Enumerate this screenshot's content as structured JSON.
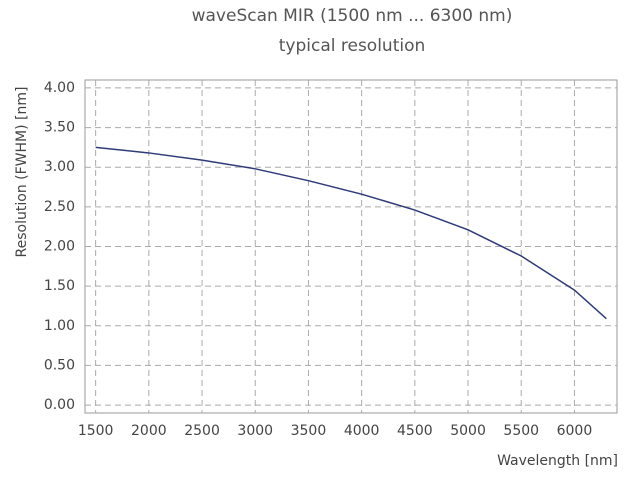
{
  "chart_data": {
    "type": "line",
    "title": "waveScan MIR (1500 nm ... 6300 nm)",
    "subtitle": "typical resolution",
    "x_label": "Wavelength [nm]",
    "y_label": "Resolution (FWHM) [nm]",
    "x": [
      1500,
      2000,
      2500,
      3000,
      3500,
      4000,
      4500,
      5000,
      5500,
      6000,
      6300
    ],
    "series": [
      {
        "name": "resolution",
        "color": "#2e3a7a",
        "values": [
          3.25,
          3.18,
          3.09,
          2.98,
          2.83,
          2.66,
          2.46,
          2.21,
          1.88,
          1.45,
          1.09
        ]
      }
    ],
    "xlim": [
      1400,
      6400
    ],
    "xticks": [
      1500,
      2000,
      2500,
      3000,
      3500,
      4000,
      4500,
      5000,
      5500,
      6000
    ],
    "ylim": [
      -0.1,
      4.1
    ],
    "yticks": [
      {
        "value": 0,
        "label": "0.00"
      },
      {
        "value": 0.5,
        "label": "0.50"
      },
      {
        "value": 1,
        "label": "1.00"
      },
      {
        "value": 1.5,
        "label": "1.50"
      },
      {
        "value": 2,
        "label": "2.00"
      },
      {
        "value": 2.5,
        "label": "2.50"
      },
      {
        "value": 3,
        "label": "3.00"
      },
      {
        "value": 3.5,
        "label": "3.50"
      },
      {
        "value": 4,
        "label": "4.00"
      }
    ],
    "grid": true
  }
}
